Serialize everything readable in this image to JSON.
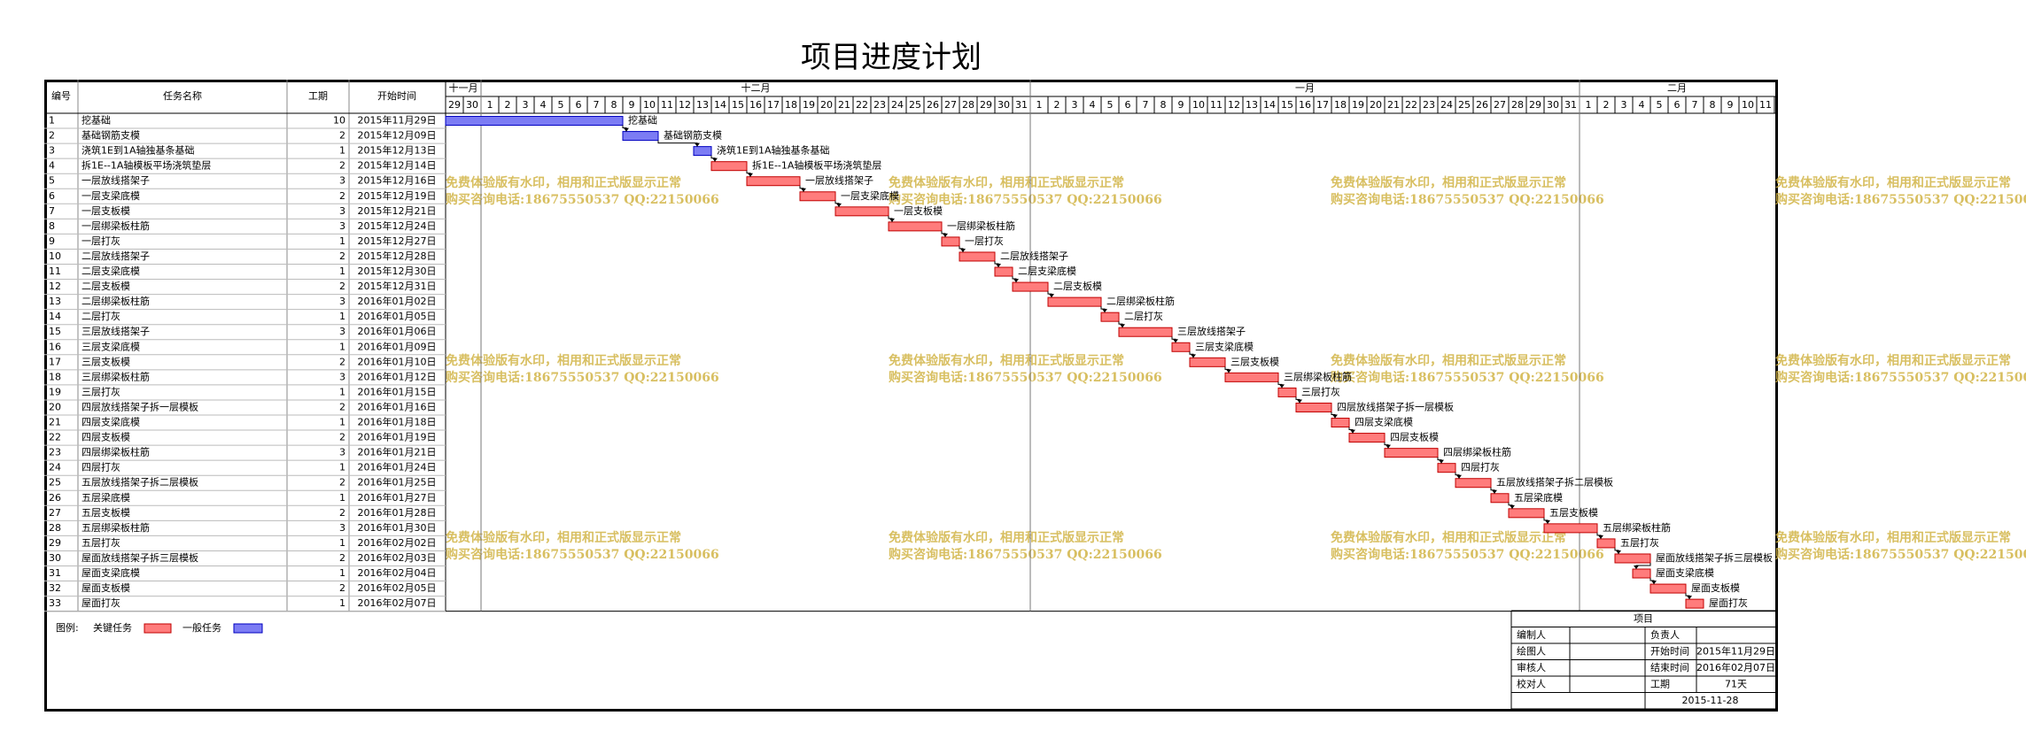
{
  "title": "项目进度计划",
  "table": {
    "columns": [
      "编号",
      "任务名称",
      "工期",
      "开始时间"
    ],
    "rows": [
      {
        "id": 1,
        "name": "挖基础",
        "duration": 10,
        "start": "2015年11月29日",
        "critical": false
      },
      {
        "id": 2,
        "name": "基础钢筋支模",
        "duration": 2,
        "start": "2015年12月09日",
        "critical": false
      },
      {
        "id": 3,
        "name": "浇筑1E到1A轴独基条基础",
        "duration": 1,
        "start": "2015年12月13日",
        "critical": false
      },
      {
        "id": 4,
        "name": "拆1E--1A轴模板平场浇筑垫层",
        "duration": 2,
        "start": "2015年12月14日",
        "critical": true
      },
      {
        "id": 5,
        "name": "一层放线搭架子",
        "duration": 3,
        "start": "2015年12月16日",
        "critical": true
      },
      {
        "id": 6,
        "name": "一层支梁底模",
        "duration": 2,
        "start": "2015年12月19日",
        "critical": true
      },
      {
        "id": 7,
        "name": "一层支板模",
        "duration": 3,
        "start": "2015年12月21日",
        "critical": true
      },
      {
        "id": 8,
        "name": "一层绑梁板柱筋",
        "duration": 3,
        "start": "2015年12月24日",
        "critical": true
      },
      {
        "id": 9,
        "name": "一层打灰",
        "duration": 1,
        "start": "2015年12月27日",
        "critical": true
      },
      {
        "id": 10,
        "name": "二层放线搭架子",
        "duration": 2,
        "start": "2015年12月28日",
        "critical": true
      },
      {
        "id": 11,
        "name": "二层支梁底模",
        "duration": 1,
        "start": "2015年12月30日",
        "critical": true
      },
      {
        "id": 12,
        "name": "二层支板模",
        "duration": 2,
        "start": "2015年12月31日",
        "critical": true
      },
      {
        "id": 13,
        "name": "二层绑梁板柱筋",
        "duration": 3,
        "start": "2016年01月02日",
        "critical": true
      },
      {
        "id": 14,
        "name": "二层打灰",
        "duration": 1,
        "start": "2016年01月05日",
        "critical": true
      },
      {
        "id": 15,
        "name": "三层放线搭架子",
        "duration": 3,
        "start": "2016年01月06日",
        "critical": true
      },
      {
        "id": 16,
        "name": "三层支梁底模",
        "duration": 1,
        "start": "2016年01月09日",
        "critical": true
      },
      {
        "id": 17,
        "name": "三层支板模",
        "duration": 2,
        "start": "2016年01月10日",
        "critical": true
      },
      {
        "id": 18,
        "name": "三层绑梁板柱筋",
        "duration": 3,
        "start": "2016年01月12日",
        "critical": true
      },
      {
        "id": 19,
        "name": "三层打灰",
        "duration": 1,
        "start": "2016年01月15日",
        "critical": true
      },
      {
        "id": 20,
        "name": "四层放线搭架子拆一层模板",
        "duration": 2,
        "start": "2016年01月16日",
        "critical": true
      },
      {
        "id": 21,
        "name": "四层支梁底模",
        "duration": 1,
        "start": "2016年01月18日",
        "critical": true
      },
      {
        "id": 22,
        "name": "四层支板模",
        "duration": 2,
        "start": "2016年01月19日",
        "critical": true
      },
      {
        "id": 23,
        "name": "四层绑梁板柱筋",
        "duration": 3,
        "start": "2016年01月21日",
        "critical": true
      },
      {
        "id": 24,
        "name": "四层打灰",
        "duration": 1,
        "start": "2016年01月24日",
        "critical": true
      },
      {
        "id": 25,
        "name": "五层放线搭架子拆二层模板",
        "duration": 2,
        "start": "2016年01月25日",
        "critical": true
      },
      {
        "id": 26,
        "name": "五层梁底模",
        "duration": 1,
        "start": "2016年01月27日",
        "critical": true
      },
      {
        "id": 27,
        "name": "五层支板模",
        "duration": 2,
        "start": "2016年01月28日",
        "critical": true
      },
      {
        "id": 28,
        "name": "五层绑梁板柱筋",
        "duration": 3,
        "start": "2016年01月30日",
        "critical": true
      },
      {
        "id": 29,
        "name": "五层打灰",
        "duration": 1,
        "start": "2016年02月02日",
        "critical": true
      },
      {
        "id": 30,
        "name": "屋面放线搭架子拆三层模板",
        "duration": 2,
        "start": "2016年02月03日",
        "critical": true
      },
      {
        "id": 31,
        "name": "屋面支梁底模",
        "duration": 1,
        "start": "2016年02月04日",
        "critical": true
      },
      {
        "id": 32,
        "name": "屋面支板模",
        "duration": 2,
        "start": "2016年02月05日",
        "critical": true
      },
      {
        "id": 33,
        "name": "屋面打灰",
        "duration": 1,
        "start": "2016年02月07日",
        "critical": true
      }
    ]
  },
  "timeline": {
    "months": [
      {
        "label": "十一月",
        "days": [
          29,
          30
        ]
      },
      {
        "label": "十二月",
        "days": [
          1,
          2,
          3,
          4,
          5,
          6,
          7,
          8,
          9,
          10,
          11,
          12,
          13,
          14,
          15,
          16,
          17,
          18,
          19,
          20,
          21,
          22,
          23,
          24,
          25,
          26,
          27,
          28,
          29,
          30,
          31
        ]
      },
      {
        "label": "一月",
        "days": [
          1,
          2,
          3,
          4,
          5,
          6,
          7,
          8,
          9,
          10,
          11,
          12,
          13,
          14,
          15,
          16,
          17,
          18,
          19,
          20,
          21,
          22,
          23,
          24,
          25,
          26,
          27,
          28,
          29,
          30,
          31
        ]
      },
      {
        "label": "二月",
        "days": [
          1,
          2,
          3,
          4,
          5,
          6,
          7,
          8,
          9,
          10,
          11
        ]
      }
    ]
  },
  "colors": {
    "critical": "#ff7c7c",
    "general": "#7c7cf4"
  },
  "legend": {
    "label": "图例:",
    "critical": "关键任务",
    "general": "一般任务"
  },
  "watermark": {
    "lines": [
      "免费体验版有水印，相用和正式版显示正常",
      "购买咨询电话:18675550537 QQ:22150066"
    ]
  },
  "info": {
    "title": "项目",
    "rows": [
      {
        "left": "编制人",
        "right": "负责人"
      },
      {
        "left": "绘图人",
        "right": "开始时间",
        "value": "2015年11月29日"
      },
      {
        "left": "审核人",
        "right": "结束时间",
        "value": "2016年02月07日"
      },
      {
        "left": "校对人",
        "right": "工期",
        "value": "71天"
      }
    ],
    "date": "2015-11-28"
  }
}
